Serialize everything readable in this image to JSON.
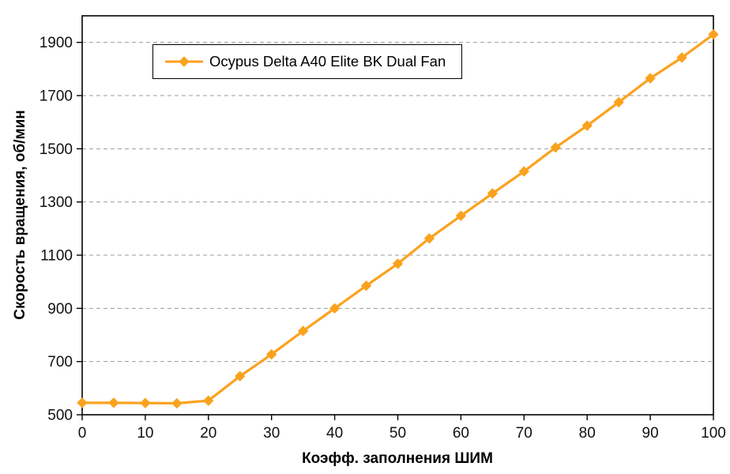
{
  "chart_data": {
    "type": "line",
    "title": "",
    "xlabel": "Коэфф. заполнения ШИМ",
    "ylabel": "Скорость вращения, об/мин",
    "xlim": [
      0,
      100
    ],
    "ylim": [
      500,
      2000
    ],
    "x_ticks": [
      0,
      10,
      20,
      30,
      40,
      50,
      60,
      70,
      80,
      90,
      100
    ],
    "y_ticks": [
      500,
      700,
      900,
      1100,
      1300,
      1500,
      1700,
      1900
    ],
    "grid": "horizontal-dashed",
    "legend_position": "top-left",
    "x": [
      0,
      5,
      10,
      15,
      20,
      25,
      30,
      35,
      40,
      45,
      50,
      55,
      60,
      65,
      70,
      75,
      80,
      85,
      90,
      95,
      100
    ],
    "series": [
      {
        "name": "Ocypus Delta A40 Elite BK Dual Fan",
        "color": "#FAA21E",
        "marker": "diamond",
        "values": [
          545,
          545,
          544,
          543,
          553,
          645,
          727,
          815,
          900,
          985,
          1068,
          1163,
          1248,
          1332,
          1415,
          1505,
          1587,
          1675,
          1765,
          1843,
          1930
        ]
      }
    ]
  },
  "colors": {
    "plot_border": "#000000",
    "gridline": "#9b9b9b",
    "tick_label": "#111111",
    "background": "#ffffff"
  }
}
